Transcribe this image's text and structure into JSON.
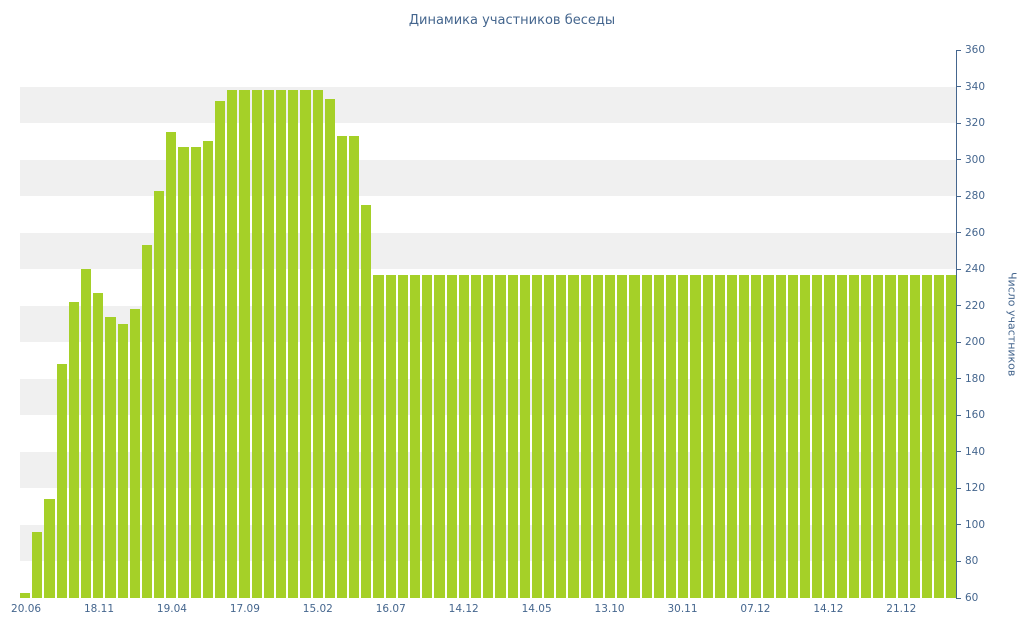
{
  "page": {
    "background": "#ffffff"
  },
  "chart_data": {
    "type": "bar",
    "title": "Динамика участников беседы",
    "xlabel": "",
    "ylabel": "Число участников",
    "ylim": [
      60,
      360
    ],
    "y_tick_step": 20,
    "y_ticks": [
      360,
      340,
      320,
      300,
      280,
      260,
      240,
      220,
      200,
      180,
      160,
      140,
      120,
      100,
      80,
      60
    ],
    "x_tick_labels": [
      "20.06",
      "18.11",
      "19.04",
      "17.09",
      "15.02",
      "16.07",
      "14.12",
      "14.05",
      "13.10",
      "30.11",
      "07.12",
      "14.12",
      "21.12"
    ],
    "x_tick_every": 6,
    "values": [
      63,
      96,
      114,
      188,
      222,
      240,
      227,
      214,
      210,
      218,
      253,
      283,
      315,
      307,
      307,
      310,
      332,
      338,
      338,
      338,
      338,
      338,
      338,
      338,
      338,
      333,
      313,
      313,
      275,
      237,
      237,
      237,
      237,
      237,
      237,
      237,
      237,
      237,
      237,
      237,
      237,
      237,
      237,
      237,
      237,
      237,
      237,
      237,
      237,
      237,
      237,
      237,
      237,
      237,
      237,
      237,
      237,
      237,
      237,
      237,
      237,
      237,
      237,
      237,
      237,
      237,
      237,
      237,
      237,
      237,
      237,
      237,
      237,
      237,
      237,
      237,
      237
    ],
    "legend": "none",
    "grid": "horizontal-bands",
    "colors": {
      "bar": "#a5d028",
      "stripe": "#f0f0f0",
      "text": "#45668e",
      "axis": "#45668e"
    }
  }
}
